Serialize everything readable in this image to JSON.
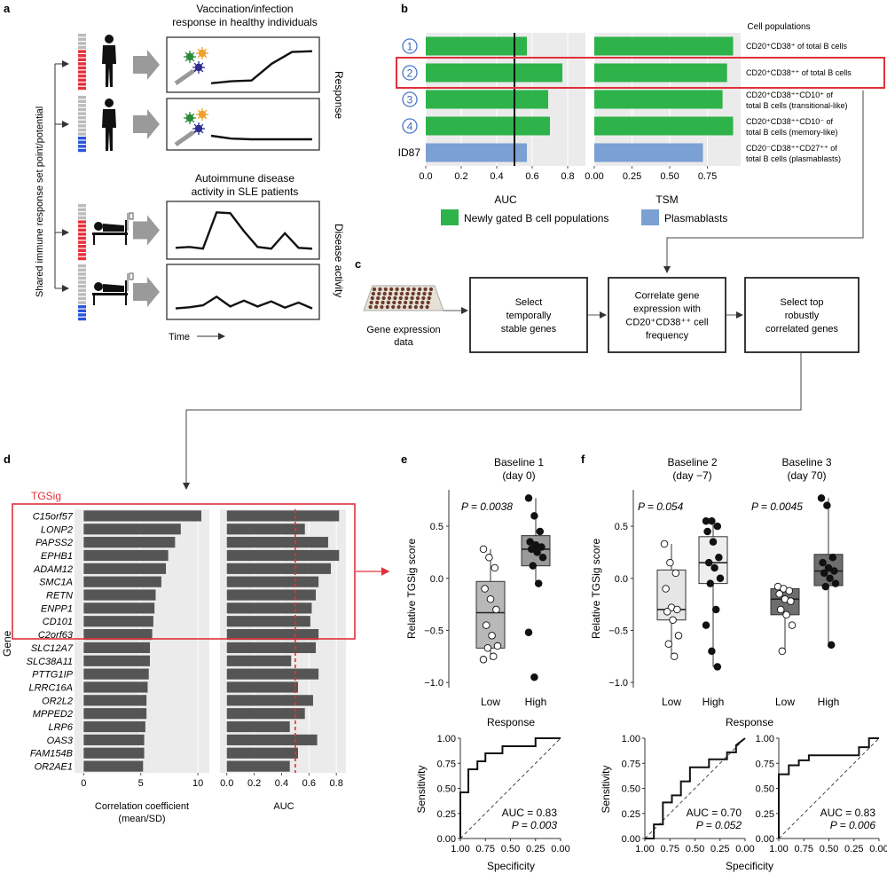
{
  "panel_labels": {
    "a": "a",
    "b": "b",
    "c": "c",
    "d": "d",
    "e": "e",
    "f": "f"
  },
  "panel_a": {
    "side_label": "Shared immune response set point/potential",
    "top_title_1": "Vaccination/infection",
    "top_title_2": "response in healthy individuals",
    "top_axis": "Response",
    "bottom_title_1": "Autoimmune disease",
    "bottom_title_2": "activity in SLE patients",
    "bottom_axis": "Disease activity",
    "time_label": "Time",
    "response_high": [
      0.05,
      0.1,
      0.12,
      0.55,
      0.85,
      0.87
    ],
    "response_low": [
      0.2,
      0.12,
      0.1,
      0.1,
      0.1,
      0.1
    ],
    "disease_high": [
      0.1,
      0.12,
      0.08,
      0.95,
      0.93,
      0.5,
      0.12,
      0.08,
      0.45,
      0.1,
      0.08
    ],
    "disease_low": [
      0.1,
      0.13,
      0.18,
      0.4,
      0.15,
      0.3,
      0.15,
      0.28,
      0.12,
      0.25,
      0.1
    ],
    "colors": {
      "high": "#e8303a",
      "low": "#2b55d8",
      "neutral": "#bbbbbb"
    }
  },
  "panel_b": {
    "header": "Cell populations",
    "row_ids": [
      "1",
      "2",
      "3",
      "4"
    ],
    "last_row_label": "ID87",
    "populations": [
      {
        "line1": "CD20⁺CD38⁺ of total B cells",
        "line2": ""
      },
      {
        "line1": "CD20⁺CD38⁺⁺ of total B cells",
        "line2": ""
      },
      {
        "line1": "CD20⁺CD38⁺⁺CD10⁺ of",
        "line2": "total B cells (transitional-like)"
      },
      {
        "line1": "CD20⁺CD38⁺⁺CD10⁻ of",
        "line2": "total B cells (memory-like)"
      },
      {
        "line1": "CD20⁻CD38⁺⁺CD27⁺⁺ of",
        "line2": "total B cells (plasmablasts)"
      }
    ],
    "legend_green": "Newly gated B cell populations",
    "legend_blue": "Plasmablasts",
    "green": "#2db34a",
    "blue": "#7aa0d4",
    "highlight": "#e0303a"
  },
  "chart_data": [
    {
      "type": "bar",
      "orientation": "horizontal",
      "panel": "b-left",
      "categories": [
        "1",
        "2",
        "3",
        "4",
        "ID87"
      ],
      "values": [
        0.57,
        0.77,
        0.69,
        0.7,
        0.57
      ],
      "xlabel": "AUC",
      "xlim": [
        0,
        0.9
      ],
      "xticks": [
        "0.0",
        "0.2",
        "0.4",
        "0.6",
        "0.8"
      ],
      "xtick_values": [
        0,
        0.2,
        0.4,
        0.6,
        0.8
      ],
      "reference_line": 0.5
    },
    {
      "type": "bar",
      "orientation": "horizontal",
      "panel": "b-right",
      "categories": [
        "1",
        "2",
        "3",
        "4",
        "ID87"
      ],
      "values": [
        0.92,
        0.88,
        0.85,
        0.92,
        0.72
      ],
      "xlabel": "TSM",
      "xlim": [
        0,
        0.97
      ],
      "xticks": [
        "0.00",
        "0.25",
        "0.50",
        "0.75"
      ],
      "xtick_values": [
        0,
        0.25,
        0.5,
        0.75
      ]
    },
    {
      "type": "bar",
      "orientation": "horizontal",
      "panel": "d-left",
      "title": "TGSig",
      "ylabel": "Gene",
      "categories": [
        "C15orf57",
        "LONP2",
        "PAPSS2",
        "EPHB1",
        "ADAM12",
        "SMC1A",
        "RETN",
        "ENPP1",
        "CD101",
        "C2orf63",
        "SLC12A7",
        "SLC38A11",
        "PTTG1IP",
        "LRRC16A",
        "OR2L2",
        "MPPED2",
        "LRP6",
        "OAS3",
        "FAM154B",
        "OR2AE1"
      ],
      "values": [
        10.3,
        8.5,
        8.0,
        7.4,
        7.2,
        6.8,
        6.3,
        6.2,
        6.1,
        6.0,
        5.8,
        5.8,
        5.7,
        5.6,
        5.5,
        5.5,
        5.4,
        5.3,
        5.3,
        5.2
      ],
      "xlabel_1": "Correlation coefficient",
      "xlabel_2": "(mean/SD)",
      "xlim": [
        -0.8,
        11
      ],
      "xticks": [
        "0",
        "5",
        "10"
      ],
      "xtick_values": [
        0,
        5,
        10
      ]
    },
    {
      "type": "bar",
      "orientation": "horizontal",
      "panel": "d-right",
      "categories": [
        "C15orf57",
        "LONP2",
        "PAPSS2",
        "EPHB1",
        "ADAM12",
        "SMC1A",
        "RETN",
        "ENPP1",
        "CD101",
        "C2orf63",
        "SLC12A7",
        "SLC38A11",
        "PTTG1IP",
        "LRRC16A",
        "OR2L2",
        "MPPED2",
        "LRP6",
        "OAS3",
        "FAM154B",
        "OR2AE1"
      ],
      "values": [
        0.82,
        0.57,
        0.74,
        0.82,
        0.76,
        0.67,
        0.65,
        0.62,
        0.61,
        0.67,
        0.65,
        0.47,
        0.67,
        0.52,
        0.63,
        0.57,
        0.46,
        0.66,
        0.52,
        0.46
      ],
      "xlabel": "AUC",
      "xlim": [
        -0.05,
        0.87
      ],
      "xticks": [
        "0.0",
        "0.2",
        "0.4",
        "0.6",
        "0.8"
      ],
      "xtick_values": [
        0,
        0.2,
        0.4,
        0.6,
        0.8
      ],
      "reference_line": 0.5
    },
    {
      "type": "scatter",
      "subtype": "boxplot",
      "panel": "e",
      "title_1": "Baseline 1",
      "title_2": "(day 0)",
      "ylabel": "Relative TGSig score",
      "xlabel": "Response",
      "ylim": [
        -1.05,
        0.85
      ],
      "yticks": [
        "0.5",
        "0.0",
        "−0.5",
        "−1.0"
      ],
      "ytick_values": [
        0.5,
        0,
        -0.5,
        -1
      ],
      "p_label": "P = 0.0038",
      "groups": [
        {
          "name": "Low",
          "box": [
            -0.67,
            -0.33,
            -0.03
          ],
          "whisker": [
            -0.78,
            0.28
          ],
          "fill": "#b8b8b8",
          "points": [
            0.28,
            0.2,
            0.1,
            -0.1,
            -0.2,
            -0.3,
            -0.45,
            -0.55,
            -0.65,
            -0.67,
            -0.75,
            -0.78
          ]
        },
        {
          "name": "High",
          "box": [
            0.12,
            0.28,
            0.41
          ],
          "whisker": [
            -0.05,
            0.77
          ],
          "fill": "#9a9a9a",
          "points": [
            0.77,
            0.6,
            0.45,
            0.35,
            0.32,
            0.3,
            0.28,
            0.25,
            0.2,
            0.12,
            -0.05,
            -0.52,
            -0.95
          ]
        }
      ]
    },
    {
      "type": "scatter",
      "subtype": "boxplot",
      "panel": "f",
      "ylabel": "Relative TGSig score",
      "xlabel": "Response",
      "ylim": [
        -1.05,
        0.85
      ],
      "yticks": [
        "0.5",
        "0.0",
        "−0.5",
        "−1.0"
      ],
      "ytick_values": [
        0.5,
        0,
        -0.5,
        -1
      ],
      "baselines": [
        {
          "title_1": "Baseline 2",
          "title_2": "(day −7)",
          "p_label": "P = 0.054",
          "groups": [
            {
              "name": "Low",
              "box": [
                -0.4,
                -0.3,
                0.08
              ],
              "whisker": [
                -0.75,
                0.33
              ],
              "fill": "#e6e6e6",
              "points": [
                0.33,
                0.15,
                0.05,
                -0.1,
                -0.28,
                -0.3,
                -0.32,
                -0.4,
                -0.55,
                -0.63,
                -0.75
              ]
            },
            {
              "name": "High",
              "box": [
                -0.05,
                0.15,
                0.4
              ],
              "whisker": [
                -0.85,
                0.55
              ],
              "fill": "#eeeeee",
              "points": [
                0.55,
                0.55,
                0.5,
                0.45,
                0.35,
                0.2,
                0.15,
                0.1,
                0.0,
                -0.05,
                -0.3,
                -0.45,
                -0.7,
                -0.85
              ]
            }
          ]
        },
        {
          "title_1": "Baseline 3",
          "title_2": "(day 70)",
          "p_label": "P = 0.0045",
          "groups": [
            {
              "name": "Low",
              "box": [
                -0.35,
                -0.2,
                -0.1
              ],
              "whisker": [
                -0.7,
                -0.08
              ],
              "fill": "#6e6e6e",
              "points": [
                -0.08,
                -0.1,
                -0.12,
                -0.15,
                -0.2,
                -0.22,
                -0.3,
                -0.35,
                -0.45,
                -0.7
              ]
            },
            {
              "name": "High",
              "box": [
                -0.07,
                0.07,
                0.23
              ],
              "whisker": [
                -0.64,
                0.77
              ],
              "fill": "#6e6e6e",
              "points": [
                0.77,
                0.7,
                0.2,
                0.15,
                0.1,
                0.07,
                0.05,
                0.0,
                -0.05,
                -0.08,
                -0.64
              ]
            }
          ]
        }
      ]
    },
    {
      "type": "line",
      "subtype": "roc",
      "panel": "e-roc",
      "xlabel": "Specificity",
      "ylabel": "Sensitivity",
      "xticks": [
        "1.00",
        "0.75",
        "0.50",
        "0.25",
        "0.00"
      ],
      "yticks": [
        "0.00",
        "0.25",
        "0.50",
        "0.75",
        "1.00"
      ],
      "auc_label": "AUC = 0.83",
      "p_label": "P = 0.003",
      "specificity": [
        1.0,
        1.0,
        0.92,
        0.92,
        0.83,
        0.83,
        0.75,
        0.75,
        0.58,
        0.58,
        0.25,
        0.25,
        0.0
      ],
      "sensitivity": [
        0.0,
        0.46,
        0.46,
        0.69,
        0.69,
        0.77,
        0.77,
        0.85,
        0.85,
        0.92,
        0.92,
        1.0,
        1.0
      ]
    },
    {
      "type": "line",
      "subtype": "roc",
      "panel": "f-roc-2",
      "xlabel": "Specificity",
      "ylabel": "Sensitivity",
      "xticks": [
        "1.00",
        "0.75",
        "0.50",
        "0.25",
        "0.00"
      ],
      "yticks": [
        "0.00",
        "0.25",
        "0.50",
        "0.75",
        "1.00"
      ],
      "auc_label": "AUC = 0.70",
      "p_label": "P = 0.052",
      "specificity": [
        1.0,
        0.91,
        0.91,
        0.82,
        0.82,
        0.73,
        0.73,
        0.64,
        0.64,
        0.55,
        0.55,
        0.36,
        0.36,
        0.18,
        0.18,
        0.09,
        0.09,
        0.0
      ],
      "sensitivity": [
        0.0,
        0.0,
        0.14,
        0.14,
        0.36,
        0.36,
        0.43,
        0.43,
        0.57,
        0.57,
        0.71,
        0.71,
        0.79,
        0.79,
        0.86,
        0.86,
        0.93,
        1.0
      ]
    },
    {
      "type": "line",
      "subtype": "roc",
      "panel": "f-roc-3",
      "xlabel": "Specificity",
      "xticks": [
        "1.00",
        "0.75",
        "0.50",
        "0.25",
        "0.00"
      ],
      "yticks": [
        "0.00",
        "0.25",
        "0.50",
        "0.75",
        "1.00"
      ],
      "auc_label": "AUC = 0.83",
      "p_label": "P = 0.006",
      "specificity": [
        1.0,
        1.0,
        0.9,
        0.9,
        0.8,
        0.8,
        0.7,
        0.7,
        0.5,
        0.5,
        0.2,
        0.2,
        0.1,
        0.1,
        0.0
      ],
      "sensitivity": [
        0.0,
        0.64,
        0.64,
        0.73,
        0.73,
        0.78,
        0.78,
        0.83,
        0.83,
        0.83,
        0.83,
        0.91,
        0.91,
        1.0,
        1.0
      ]
    }
  ],
  "panel_c": {
    "input_line1": "Gene expression",
    "input_line2": "data",
    "steps": [
      [
        "Select",
        "temporally",
        "stable genes"
      ],
      [
        "Correlate gene",
        "expression with",
        "CD20⁺CD38⁺⁺ cell",
        "frequency"
      ],
      [
        "Select top",
        "robustly",
        "correlated genes"
      ]
    ]
  }
}
